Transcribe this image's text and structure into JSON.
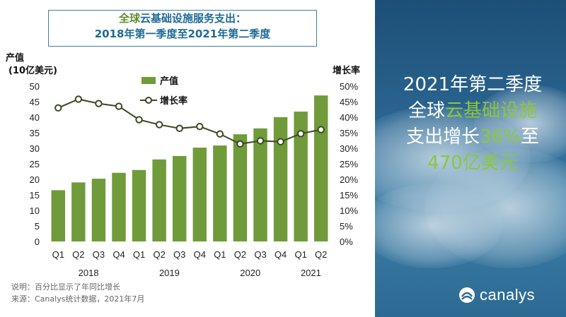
{
  "title": {
    "line1_hl": "全球",
    "line1_rest": "云基础设施服务支出：",
    "line2": "2018年第一季度至2021年第二季度"
  },
  "chart_data": {
    "type": "bar",
    "categories": [
      "Q1",
      "Q2",
      "Q3",
      "Q4",
      "Q1",
      "Q2",
      "Q3",
      "Q4",
      "Q1",
      "Q2",
      "Q3",
      "Q4",
      "Q1",
      "Q2"
    ],
    "years": [
      {
        "label": "2018",
        "span": [
          0,
          3
        ]
      },
      {
        "label": "2019",
        "span": [
          4,
          7
        ]
      },
      {
        "label": "2020",
        "span": [
          8,
          11
        ]
      },
      {
        "label": "2021",
        "span": [
          12,
          13
        ]
      }
    ],
    "series": [
      {
        "name": "产值",
        "type": "bar",
        "axis": "left",
        "color": "#6f9b3a",
        "values": [
          16.5,
          19.0,
          20.2,
          22.1,
          23.0,
          26.4,
          27.5,
          30.2,
          30.9,
          34.5,
          36.4,
          40.0,
          41.8,
          47.0
        ]
      },
      {
        "name": "增长率",
        "type": "line",
        "axis": "right",
        "color": "#3a4a22",
        "values": [
          43,
          45.8,
          44.4,
          43.5,
          39.2,
          37.6,
          36.4,
          37.0,
          34.6,
          31.4,
          32.4,
          32.1,
          34.7,
          36.0
        ]
      }
    ],
    "ylabel_left_line1": "产值",
    "ylabel_left_line2": "(10亿美元)",
    "ylabel_right": "增长率",
    "ylim_left": [
      0,
      50
    ],
    "ylim_right": [
      0,
      50
    ],
    "yticks_left": [
      "0",
      "5",
      "10",
      "15",
      "20",
      "25",
      "30",
      "35",
      "40",
      "45",
      "50"
    ],
    "yticks_right": [
      "0%",
      "5%",
      "10%",
      "15%",
      "20%",
      "25%",
      "30%",
      "35%",
      "40%",
      "45%",
      "50%"
    ],
    "legend_position": "top-left",
    "grid": false
  },
  "notes": {
    "line1": "说明：百分比显示了年同比增长",
    "line2": "来源：Canalys统计数据，2021年7月"
  },
  "headline": {
    "l1": "2021年第二季度",
    "l2a": "全球",
    "l2b": "云基础设施",
    "l3a": "支出增长",
    "l3b": "36%",
    "l3c": "至",
    "l4": "470亿美元"
  },
  "brand": {
    "name": "canalys",
    "icon": "canalys-logo-icon"
  }
}
